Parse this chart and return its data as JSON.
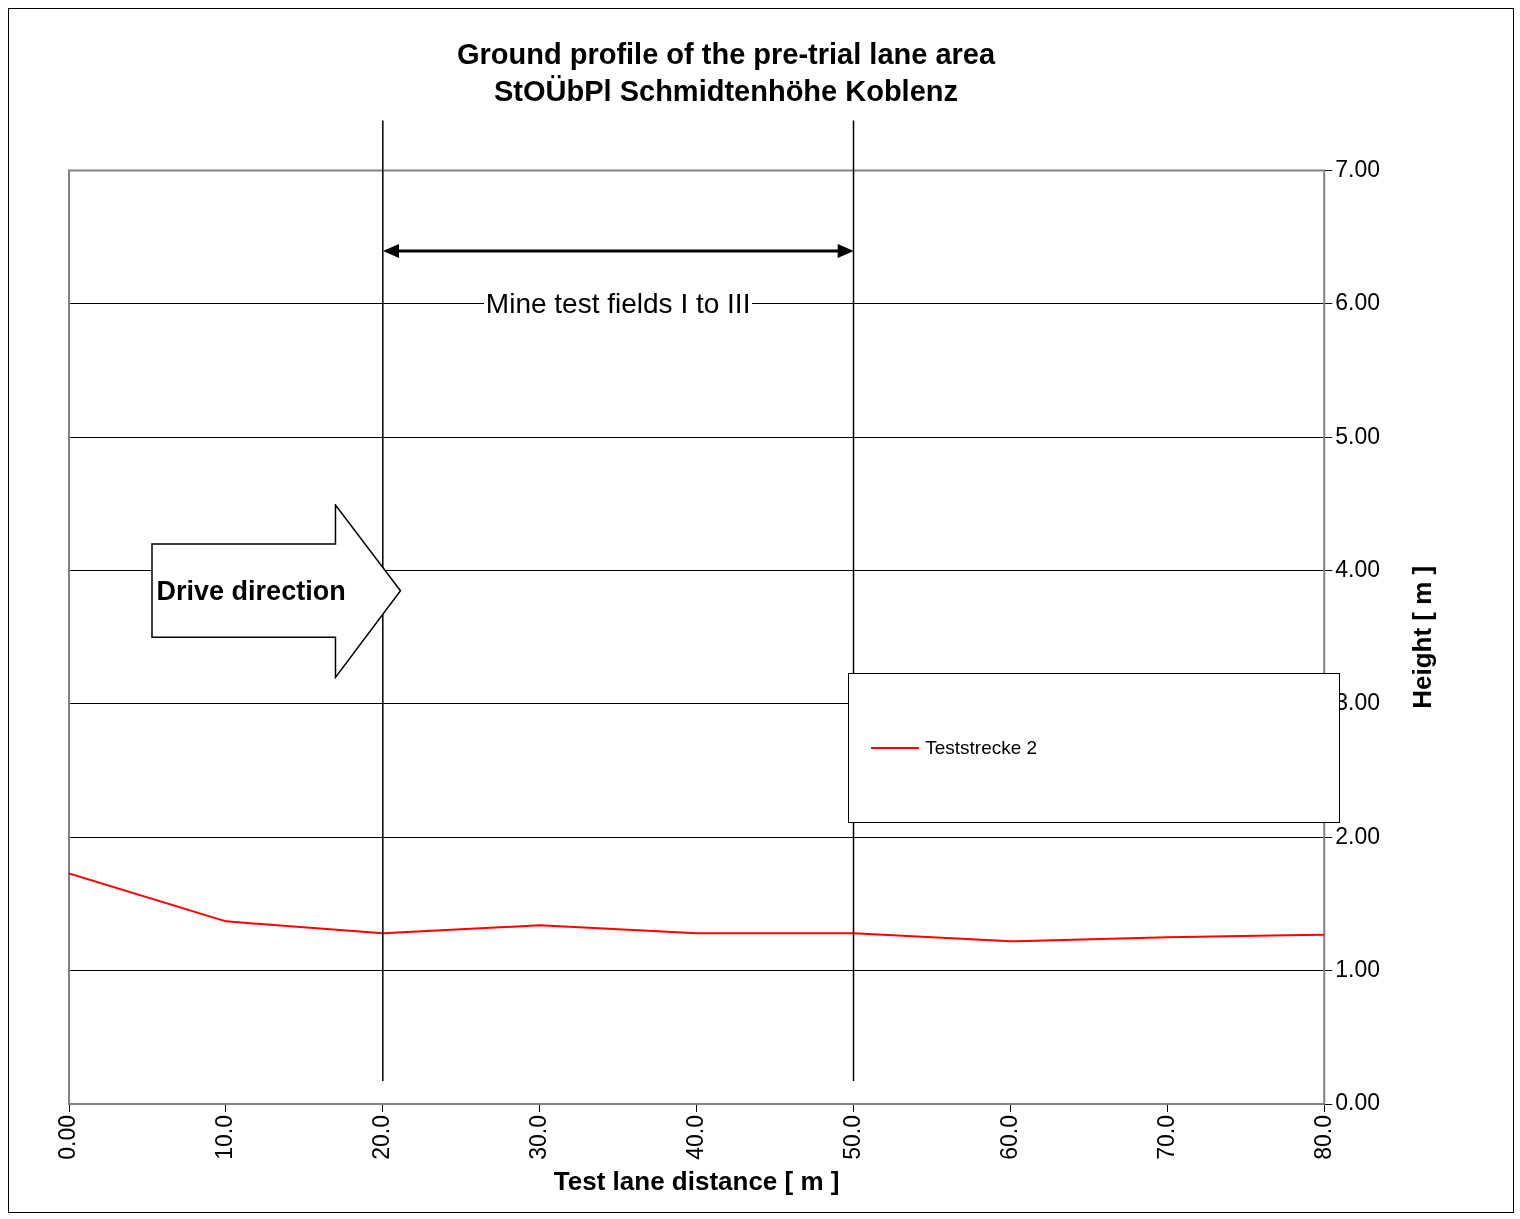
{
  "chart_data": {
    "type": "line",
    "title": "Ground profile of the pre-trial lane area",
    "subtitle": "StOÜbPl Schmidtenhöhe Koblenz",
    "xlabel": "Test lane distance [ m ]",
    "ylabel": "Height [ m ]",
    "x": [
      0,
      10,
      20,
      30,
      40,
      50,
      60,
      70,
      80
    ],
    "series": [
      {
        "name": "Teststrecke 2",
        "color": "#ff0000",
        "values": [
          1.73,
          1.37,
          1.28,
          1.34,
          1.28,
          1.28,
          1.22,
          1.25,
          1.27
        ]
      }
    ],
    "xlim": [
      0,
      80
    ],
    "xticks": [
      {
        "value": 0,
        "label": "0.00"
      },
      {
        "value": 10,
        "label": "10.0"
      },
      {
        "value": 20,
        "label": "20.0"
      },
      {
        "value": 30,
        "label": "30.0"
      },
      {
        "value": 40,
        "label": "40.0"
      },
      {
        "value": 50,
        "label": "50.0"
      },
      {
        "value": 60,
        "label": "60.0"
      },
      {
        "value": 70,
        "label": "70.0"
      },
      {
        "value": 80,
        "label": "80.0"
      }
    ],
    "ylim": [
      0,
      7
    ],
    "yticks": [
      {
        "value": 0,
        "label": "0.00"
      },
      {
        "value": 1,
        "label": "1.00"
      },
      {
        "value": 2,
        "label": "2.00"
      },
      {
        "value": 3,
        "label": "3.00"
      },
      {
        "value": 4,
        "label": "4.00"
      },
      {
        "value": 5,
        "label": "5.00"
      },
      {
        "value": 6,
        "label": "6.00"
      },
      {
        "value": 7,
        "label": "7.00"
      }
    ],
    "ref_lines": [
      {
        "axis": "x",
        "value": 20,
        "color": "#000000"
      },
      {
        "axis": "x",
        "value": 50,
        "color": "#000000"
      }
    ],
    "annotations": [
      "Mine test fields I to III",
      "Drive direction"
    ],
    "grid": "y",
    "legend": "right",
    "marker": "none",
    "line_style": "solid"
  }
}
